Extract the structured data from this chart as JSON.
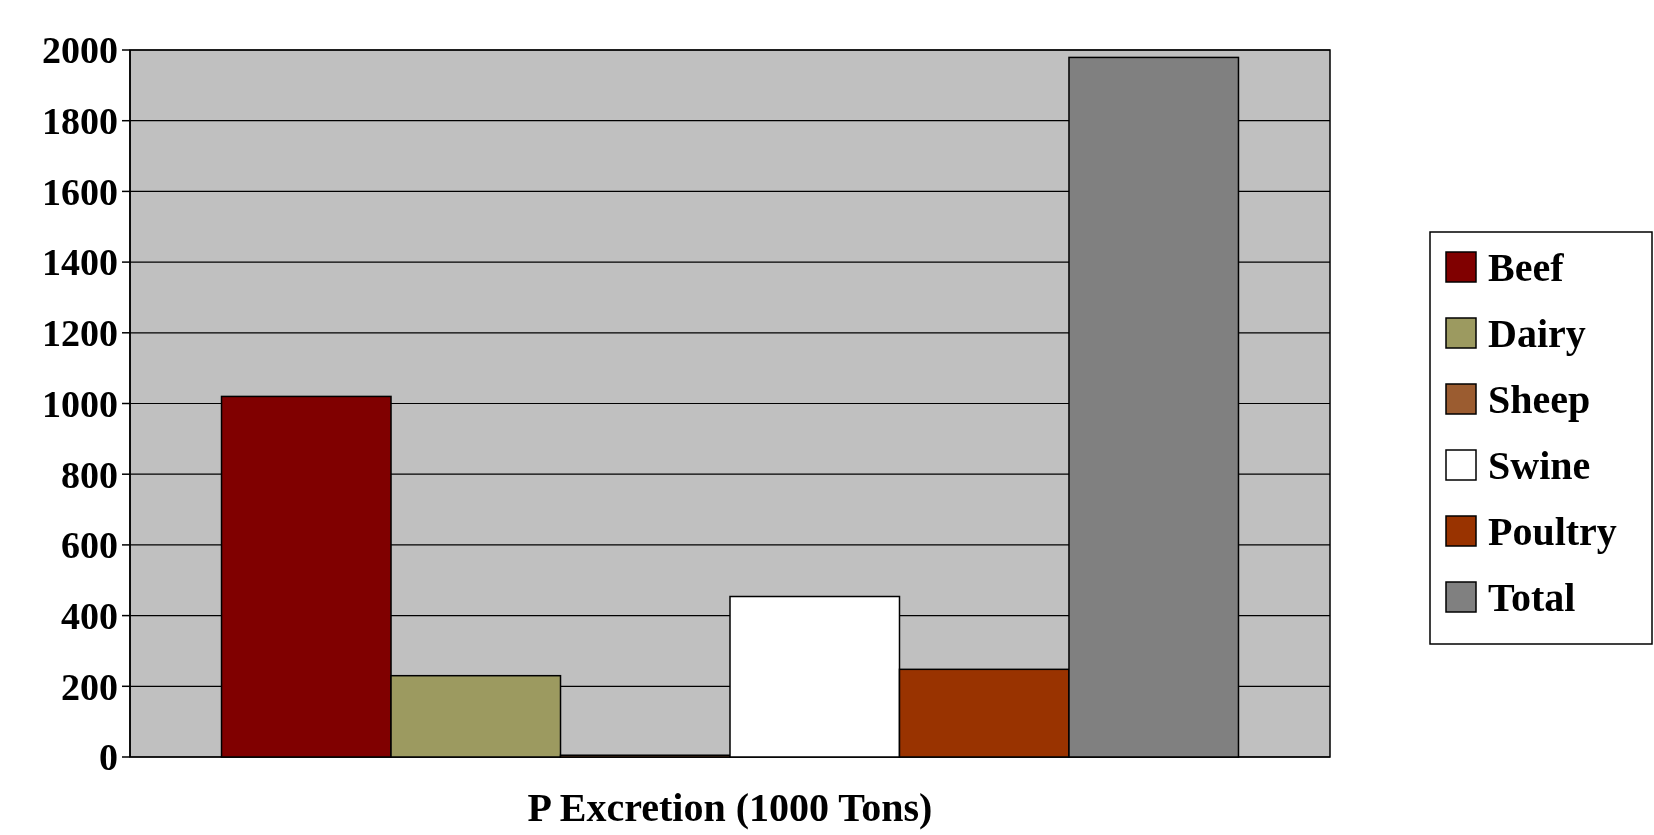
{
  "chart_data": {
    "type": "bar",
    "xlabel": "P Excretion (1000 Tons)",
    "categories": [
      null
    ],
    "series": [
      {
        "name": "Beef",
        "color": "#800000",
        "values": [
          1020
        ]
      },
      {
        "name": "Dairy",
        "color": "#9c9a60",
        "values": [
          230
        ]
      },
      {
        "name": "Sheep",
        "color": "#9b5c30",
        "values": [
          5
        ]
      },
      {
        "name": "Swine",
        "color": "#ffffff",
        "values": [
          454
        ]
      },
      {
        "name": "Poultry",
        "color": "#993300",
        "values": [
          248
        ]
      },
      {
        "name": "Total",
        "color": "#808080",
        "values": [
          1979
        ]
      }
    ],
    "ylim": [
      0,
      2000
    ],
    "yticks": [
      0,
      200,
      400,
      600,
      800,
      1000,
      1200,
      1400,
      1600,
      1800,
      2000
    ],
    "grid": "y",
    "legend": "right"
  }
}
